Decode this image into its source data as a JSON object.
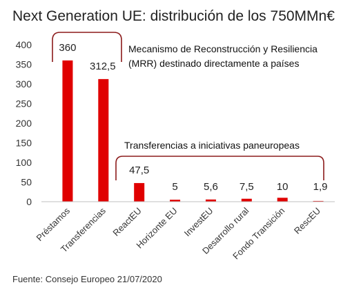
{
  "chart_data": {
    "type": "bar",
    "title": "Next Generation UE: distribución de los 750MMn€",
    "categories": [
      "Préstamos",
      "Transferencias",
      "ReactEU",
      "Horizonte EU",
      "InvestEU",
      "Desarrollo rural",
      "Fondo Transición",
      "RescEU"
    ],
    "values": [
      360,
      312.5,
      47.5,
      5,
      5.6,
      7.5,
      10,
      1.9
    ],
    "data_labels": [
      "360",
      "312,5",
      "47,5",
      "5",
      "5,6",
      "7,5",
      "10",
      "1,9"
    ],
    "yticks": [
      "0",
      "50",
      "100",
      "150",
      "200",
      "250",
      "300",
      "350",
      "400"
    ],
    "ylim": [
      0,
      400
    ],
    "bar_color": "#e00000",
    "bracket_color": "#8b1a1a",
    "grid": false,
    "annotations": [
      {
        "text_lines": [
          "Mecanismo de Reconstrucción y Resiliencia",
          "(MRR) destinado directamente a países"
        ]
      },
      {
        "text_lines": [
          "Transferencias a iniciativas paneuropeas"
        ]
      }
    ],
    "source": "Fuente: Consejo Europeo 21/07/2020"
  }
}
